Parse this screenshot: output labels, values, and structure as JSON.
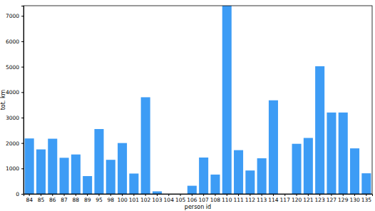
{
  "chart_data": {
    "type": "bar",
    "x_label": "person id",
    "y_label": "tot. km",
    "categories": [
      "84",
      "85",
      "86",
      "87",
      "88",
      "89",
      "95",
      "98",
      "100",
      "101",
      "102",
      "103",
      "104",
      "105",
      "106",
      "107",
      "108",
      "110",
      "111",
      "112",
      "113",
      "114",
      "117",
      "120",
      "121",
      "123",
      "127",
      "129",
      "130",
      "135"
    ],
    "values": [
      2180,
      1750,
      2170,
      1420,
      1550,
      700,
      2550,
      1340,
      2000,
      800,
      3800,
      100,
      0,
      0,
      320,
      1430,
      760,
      7400,
      1720,
      920,
      1400,
      3680,
      0,
      1970,
      2200,
      5020,
      3200,
      3200,
      1790,
      810
    ],
    "color": "#3d9cf5",
    "ylim": [
      0,
      7400
    ],
    "yticks": [
      0,
      1000,
      2000,
      3000,
      4000,
      5000,
      6000,
      7000
    ],
    "grid": false
  }
}
